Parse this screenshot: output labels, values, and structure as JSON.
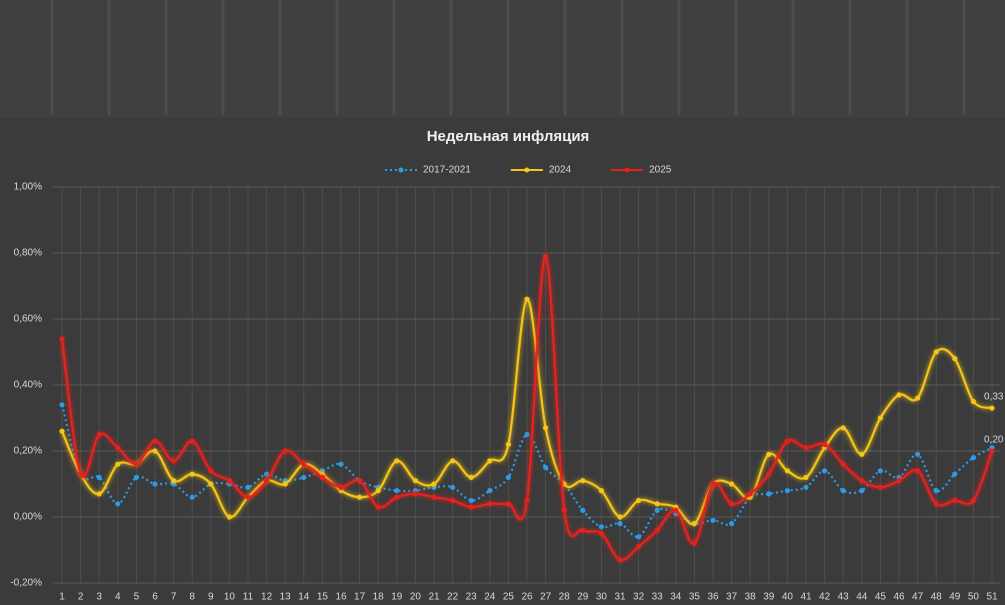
{
  "chart_data": {
    "type": "line",
    "title": "Недельная инфляция",
    "categories": [
      1,
      2,
      3,
      4,
      5,
      6,
      7,
      8,
      9,
      10,
      11,
      12,
      13,
      14,
      15,
      16,
      17,
      18,
      19,
      20,
      21,
      22,
      23,
      24,
      25,
      26,
      27,
      28,
      29,
      30,
      31,
      32,
      33,
      34,
      35,
      36,
      37,
      38,
      39,
      40,
      41,
      42,
      43,
      44,
      45,
      46,
      47,
      48,
      49,
      50,
      51
    ],
    "series": [
      {
        "name": "2017-2021",
        "color": "#2e9be6",
        "style": "dotted",
        "values": [
          0.34,
          0.13,
          0.12,
          0.04,
          0.12,
          0.1,
          0.1,
          0.06,
          0.1,
          0.1,
          0.09,
          0.13,
          0.11,
          0.12,
          0.14,
          0.16,
          0.11,
          0.09,
          0.08,
          0.08,
          0.09,
          0.09,
          0.05,
          0.08,
          0.12,
          0.25,
          0.15,
          0.1,
          0.02,
          -0.03,
          -0.02,
          -0.06,
          0.02,
          0.01,
          -0.02,
          -0.01,
          -0.02,
          0.06,
          0.07,
          0.08,
          0.09,
          0.14,
          0.08,
          0.08,
          0.14,
          0.12,
          0.19,
          0.08,
          0.13,
          0.18,
          0.21
        ]
      },
      {
        "name": "2024",
        "color": "#f5c518",
        "style": "solid",
        "values": [
          0.26,
          0.13,
          0.07,
          0.16,
          0.16,
          0.2,
          0.11,
          0.13,
          0.1,
          0.0,
          0.06,
          0.11,
          0.1,
          0.16,
          0.13,
          0.08,
          0.06,
          0.08,
          0.17,
          0.11,
          0.1,
          0.17,
          0.12,
          0.17,
          0.22,
          0.66,
          0.27,
          0.1,
          0.11,
          0.08,
          0.0,
          0.05,
          0.04,
          0.03,
          -0.02,
          0.1,
          0.1,
          0.06,
          0.19,
          0.14,
          0.12,
          0.21,
          0.27,
          0.19,
          0.3,
          0.37,
          0.36,
          0.5,
          0.48,
          0.35,
          0.33
        ],
        "value_labels": [
          null,
          null,
          null,
          null,
          null,
          null,
          null,
          null,
          null,
          null,
          null,
          null,
          null,
          null,
          null,
          null,
          null,
          null,
          null,
          null,
          null,
          null,
          null,
          null,
          null,
          null,
          null,
          null,
          null,
          null,
          null,
          null,
          null,
          null,
          null,
          null,
          null,
          null,
          null,
          null,
          null,
          null,
          null,
          null,
          null,
          null,
          null,
          null,
          null,
          null,
          "0,33"
        ]
      },
      {
        "name": "2025",
        "color": "#e8201c",
        "style": "solid",
        "values": [
          0.54,
          0.13,
          0.25,
          0.21,
          0.16,
          0.23,
          0.17,
          0.23,
          0.14,
          0.11,
          0.06,
          0.11,
          0.2,
          0.16,
          0.12,
          0.09,
          0.11,
          0.03,
          0.06,
          0.07,
          0.06,
          0.05,
          0.03,
          0.04,
          0.04,
          0.05,
          0.79,
          0.02,
          -0.04,
          -0.05,
          -0.13,
          -0.09,
          -0.04,
          0.02,
          -0.08,
          0.1,
          0.04,
          0.07,
          0.13,
          0.23,
          0.21,
          0.22,
          0.16,
          0.11,
          0.09,
          0.11,
          0.14,
          0.04,
          0.05,
          0.05,
          0.2
        ],
        "value_labels": [
          null,
          null,
          null,
          null,
          null,
          null,
          null,
          null,
          null,
          null,
          null,
          null,
          null,
          null,
          null,
          null,
          null,
          null,
          null,
          null,
          null,
          null,
          null,
          null,
          null,
          null,
          null,
          null,
          null,
          null,
          null,
          null,
          null,
          null,
          null,
          null,
          null,
          null,
          null,
          null,
          null,
          null,
          null,
          null,
          null,
          null,
          null,
          null,
          null,
          null,
          "0,20"
        ]
      }
    ],
    "ylim": [
      -0.2,
      1.0
    ],
    "yticks": [
      {
        "value": -0.2,
        "label": "-0,20%"
      },
      {
        "value": 0,
        "label": "0,00%"
      },
      {
        "value": 0.2,
        "label": "0,20%"
      },
      {
        "value": 0.4,
        "label": "0,40%"
      },
      {
        "value": 0.6,
        "label": "0,60%"
      },
      {
        "value": 0.8,
        "label": "0,80%"
      },
      {
        "value": 1.0,
        "label": "1,00%"
      }
    ],
    "grid": true,
    "legend": "top"
  }
}
